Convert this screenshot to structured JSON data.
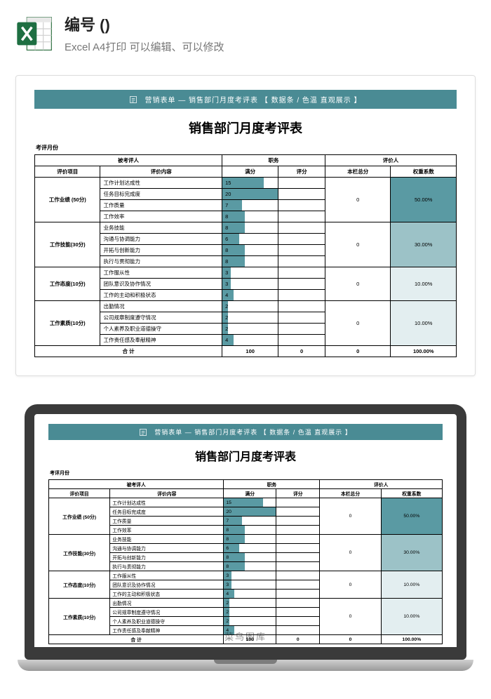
{
  "header": {
    "title": "编号 ()",
    "subtitle": "Excel A4打印 可以编辑、可以修改"
  },
  "banner_text": "营销表单 — 销售部门月度考评表 【 数据条 / 色温 直观展示 】",
  "report_title": "销售部门月度考评表",
  "meta_month_label": "考评月份",
  "columns": {
    "evaluee": "被考评人",
    "duty": "职务",
    "evaluator": "评价人",
    "item": "评价项目",
    "content": "评价内容",
    "full": "满分",
    "score": "评分",
    "subtotal": "本栏总分",
    "weight": "权重系数"
  },
  "col_widths": {
    "item": "14%",
    "content": "26%",
    "full": "12%",
    "score": "10%",
    "subtotal": "14%",
    "weight": "14%"
  },
  "max_full_score": 20,
  "sections": [
    {
      "label": "工作业绩 (50分)",
      "subtotal": "0",
      "weight": "50.00%",
      "weight_heat_color": "#5a9aa3",
      "rows": [
        {
          "content": "工作计划达成性",
          "full": 15
        },
        {
          "content": "任务目标完成度",
          "full": 20
        },
        {
          "content": "工作质量",
          "full": 7
        },
        {
          "content": "工作效率",
          "full": 8
        }
      ]
    },
    {
      "label": "工作技能(30分)",
      "subtotal": "0",
      "weight": "30.00%",
      "weight_heat_color": "#9cc2c7",
      "rows": [
        {
          "content": "业务技能",
          "full": 8
        },
        {
          "content": "沟通与协调能力",
          "full": 6
        },
        {
          "content": "开拓与创新能力",
          "full": 8
        },
        {
          "content": "执行与贯彻能力",
          "full": 8
        }
      ]
    },
    {
      "label": "工作态度(10分)",
      "subtotal": "0",
      "weight": "10.00%",
      "weight_heat_color": "#e3eef0",
      "rows": [
        {
          "content": "工作服从性",
          "full": 3
        },
        {
          "content": "团队意识及协作情况",
          "full": 3
        },
        {
          "content": "工作的主动和积极状态",
          "full": 4
        }
      ]
    },
    {
      "label": "工作素质(10分)",
      "subtotal": "0",
      "weight": "10.00%",
      "weight_heat_color": "#e3eef0",
      "rows": [
        {
          "content": "出勤情况",
          "full": 2
        },
        {
          "content": "公司规章制度遵守情况",
          "full": 2
        },
        {
          "content": "个人素养及职业道德操守",
          "full": 2
        },
        {
          "content": "工作责任感及奉献精神",
          "full": 4
        }
      ]
    }
  ],
  "total": {
    "label": "合  计",
    "full": "100",
    "score": "0",
    "subtotal": "0",
    "weight": "100.00%"
  },
  "colors": {
    "banner_bg": "#4a8b94",
    "databar": "#5a9aa3"
  },
  "watermark": "菜鸟图库"
}
